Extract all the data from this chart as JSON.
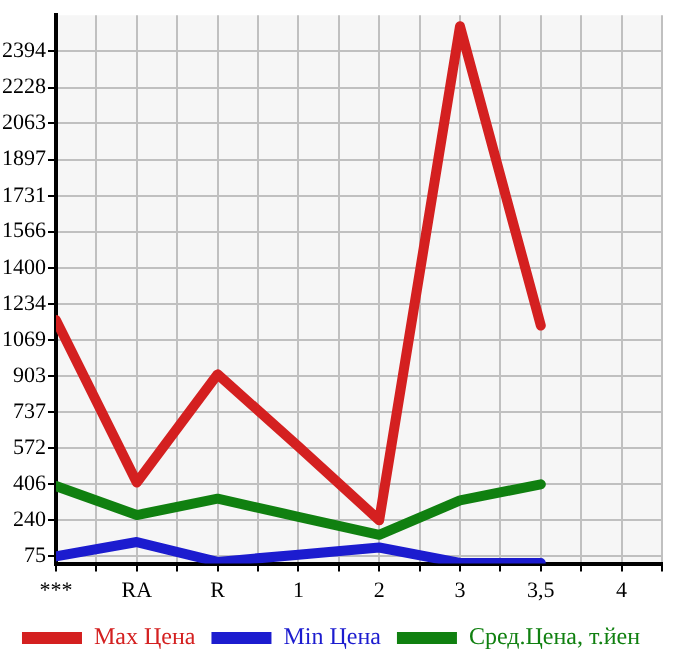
{
  "chart_data": {
    "type": "line",
    "categories": [
      "***",
      "RA",
      "R",
      "1",
      "2",
      "3",
      "3,5",
      "4"
    ],
    "series": [
      {
        "name": "Max Цена",
        "color": "#d42020",
        "values": [
          1160,
          414,
          911,
          580,
          241,
          2509,
          1135,
          null
        ]
      },
      {
        "name": "Min Цена",
        "color": "#1c1ccf",
        "values": [
          75,
          141,
          50,
          83,
          116,
          45,
          45,
          null
        ]
      },
      {
        "name": "Сред.Цена, т.йен",
        "color": "#108010",
        "values": [
          398,
          265,
          340,
          257,
          174,
          332,
          406,
          null
        ]
      }
    ],
    "ylim": [
      42,
      2560
    ],
    "yticks": [
      75,
      240,
      406,
      572,
      737,
      903,
      1069,
      1234,
      1400,
      1566,
      1731,
      1897,
      2063,
      2228,
      2394
    ],
    "grid": true,
    "legend": "bottom",
    "marker": "none",
    "line_style": "solid"
  }
}
